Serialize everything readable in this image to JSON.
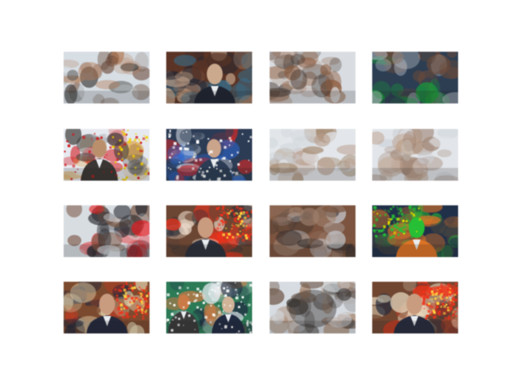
{
  "figure": {
    "background": "#ffffff",
    "grid": {
      "rows": 4,
      "cols": 4
    },
    "tiles": [
      {
        "id": "r1c1",
        "subject": "blurred-reconstruction",
        "palette": [
          "#d7dee4",
          "#6a4a3a",
          "#b07a58",
          "#3c3a38"
        ]
      },
      {
        "id": "r1c2",
        "subject": "man-in-dark-suit-news-frame",
        "palette": [
          "#5a3426",
          "#1f2430",
          "#c9a98f",
          "#3a6e8a"
        ]
      },
      {
        "id": "r1c3",
        "subject": "blurred-reconstruction",
        "palette": [
          "#d9dde2",
          "#8a5a3e",
          "#a58571",
          "#4a3e38"
        ]
      },
      {
        "id": "r1c4",
        "subject": "blurred-reconstruction-with-noise",
        "palette": [
          "#2e3e52",
          "#c0c8d0",
          "#6a4a3a",
          "#17a33a"
        ]
      },
      {
        "id": "r2c1",
        "subject": "noisy-reconstruction",
        "palette": [
          "#e6eaf0",
          "#3a3633",
          "#d8a14a",
          "#c9191e"
        ]
      },
      {
        "id": "r2c2",
        "subject": "noisy-reconstruction-office",
        "palette": [
          "#2d3c54",
          "#e8edf2",
          "#2f66c8",
          "#c62b2b"
        ]
      },
      {
        "id": "r2c3",
        "subject": "pale-blurred-reconstruction",
        "palette": [
          "#e3e6ea",
          "#b79d8d",
          "#a2886f",
          "#cdd3d9"
        ]
      },
      {
        "id": "r2c4",
        "subject": "pale-blurred-reconstruction",
        "palette": [
          "#e2e5e9",
          "#bca08b",
          "#9f8676",
          "#cfd4da"
        ]
      },
      {
        "id": "r3c1",
        "subject": "blurred-reconstruction-with-noise",
        "palette": [
          "#d8dde2",
          "#2c2d33",
          "#7b5a4a",
          "#e0181c"
        ]
      },
      {
        "id": "r3c2",
        "subject": "man-with-red-noise",
        "palette": [
          "#6a4634",
          "#2b2f3a",
          "#e8341f",
          "#e8d7c8"
        ]
      },
      {
        "id": "r3c3",
        "subject": "dark-blurred-reconstruction",
        "palette": [
          "#7a5440",
          "#3a3230",
          "#c7ccd2",
          "#a08270"
        ]
      },
      {
        "id": "r3c4",
        "subject": "person-orange-shirt-green-noise",
        "palette": [
          "#223048",
          "#d9742a",
          "#2bbd3a",
          "#4a4640"
        ]
      },
      {
        "id": "r4c1",
        "subject": "man-with-red-noise",
        "palette": [
          "#7a4a30",
          "#24283a",
          "#e3321c",
          "#f0e6c2"
        ]
      },
      {
        "id": "r4c2",
        "subject": "tv-studio-noisy",
        "palette": [
          "#2f7a58",
          "#e8eef2",
          "#c77b49",
          "#202a40"
        ]
      },
      {
        "id": "r4c3",
        "subject": "blurred-reconstruction-dark-center",
        "palette": [
          "#d7dce2",
          "#3a3532",
          "#a07b60",
          "#6c5648"
        ]
      },
      {
        "id": "r4c4",
        "subject": "man-with-red-noise",
        "palette": [
          "#6f4632",
          "#262b3c",
          "#e6381e",
          "#ece0c6"
        ]
      }
    ]
  }
}
